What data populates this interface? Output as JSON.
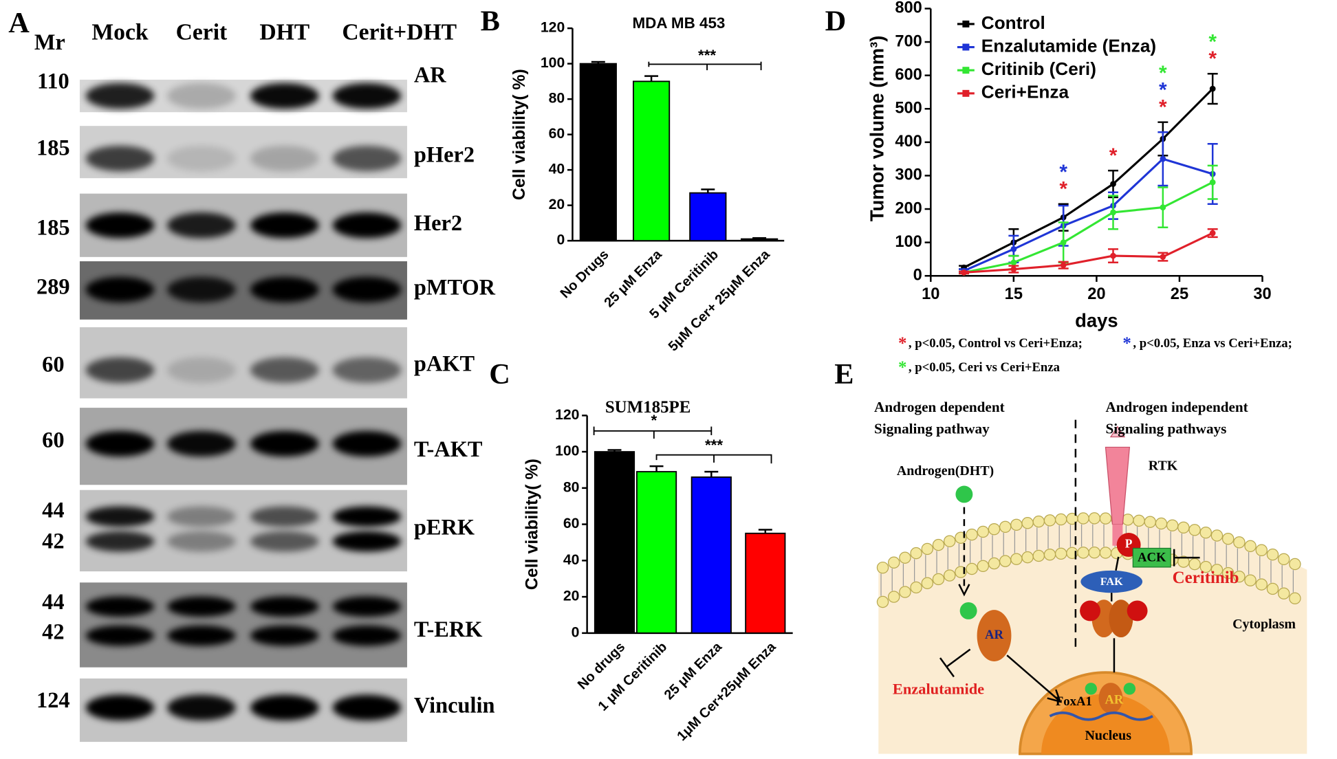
{
  "panel_labels": [
    "A",
    "B",
    "C",
    "D",
    "E"
  ],
  "blot": {
    "mr_header": "Mr",
    "columns": [
      "Mock",
      "Cerit",
      "DHT",
      "Cerit+DHT"
    ],
    "rows": [
      {
        "mr": [
          110
        ],
        "label": "AR"
      },
      {
        "mr": [
          185
        ],
        "label": "pHer2"
      },
      {
        "mr": [
          185
        ],
        "label": "Her2"
      },
      {
        "mr": [
          289
        ],
        "label": "pMTOR"
      },
      {
        "mr": [
          60
        ],
        "label": "pAKT"
      },
      {
        "mr": [
          60
        ],
        "label": "T-AKT"
      },
      {
        "mr": [
          44,
          42
        ],
        "label": "pERK"
      },
      {
        "mr": [
          44,
          42
        ],
        "label": "T-ERK"
      },
      {
        "mr": [
          124
        ],
        "label": "Vinculin"
      }
    ]
  },
  "chart_data": [
    {
      "type": "bar",
      "title": "MDA MB 453",
      "y_label": "Cell viability( %)",
      "categories": [
        "No Drugs",
        "25 μM Enza",
        "5 μM Ceritinib",
        "5μM Cer+ 25μM Enza"
      ],
      "values": [
        100,
        90,
        27,
        1
      ],
      "errors": [
        1,
        3,
        2,
        0.5
      ],
      "colors": [
        "#000000",
        "#00ff00",
        "#0000ff",
        "#000000"
      ],
      "ylim": [
        0,
        120
      ],
      "yticks": [
        0,
        20,
        40,
        60,
        80,
        100,
        120
      ],
      "annotations": [
        "***"
      ]
    },
    {
      "type": "bar",
      "title": "SUM185PE",
      "y_label": "Cell viability( %)",
      "categories": [
        "No drugs",
        "1 μM Ceritinib",
        "25 μM Enza",
        "1μM Cer+25μM Enza"
      ],
      "values": [
        100,
        89,
        86,
        55
      ],
      "errors": [
        1,
        3,
        3,
        2
      ],
      "colors": [
        "#000000",
        "#00ff00",
        "#0000ff",
        "#ff0000"
      ],
      "ylim": [
        0,
        120
      ],
      "yticks": [
        0,
        20,
        40,
        60,
        80,
        100,
        120
      ],
      "annotations": [
        "*",
        "***"
      ]
    },
    {
      "type": "line",
      "x_label": "days",
      "y_label": "Tumor volume (mm³)",
      "x": [
        12,
        15,
        18,
        21,
        24,
        27
      ],
      "series": [
        {
          "name": "Control",
          "color": "#000000",
          "values": [
            25,
            100,
            175,
            275,
            410,
            560
          ],
          "errors": [
            5,
            40,
            40,
            40,
            50,
            45
          ]
        },
        {
          "name": "Enzalutamide (Enza)",
          "color": "#1f35d6",
          "values": [
            15,
            80,
            150,
            210,
            350,
            305
          ],
          "errors": [
            5,
            40,
            60,
            40,
            80,
            90
          ]
        },
        {
          "name": "Critinib (Ceri)",
          "color": "#33e633",
          "values": [
            10,
            40,
            100,
            190,
            205,
            280
          ],
          "errors": [
            3,
            20,
            60,
            50,
            60,
            50
          ]
        },
        {
          "name": "Ceri+Enza",
          "color": "#e0202a",
          "values": [
            10,
            20,
            32,
            60,
            57,
            128
          ],
          "errors": [
            3,
            10,
            10,
            20,
            12,
            12
          ]
        }
      ],
      "xlim": [
        10,
        30
      ],
      "xticks": [
        10,
        15,
        20,
        25,
        30
      ],
      "ylim": [
        0,
        800
      ],
      "yticks": [
        0,
        100,
        200,
        300,
        400,
        500,
        600,
        700,
        800
      ],
      "annotations": [
        {
          "x": 18,
          "text": "*",
          "color": "#e0202a"
        },
        {
          "x": 18,
          "text": "*",
          "color": "#1f35d6"
        },
        {
          "x": 21,
          "text": "*",
          "color": "#e0202a"
        },
        {
          "x": 24,
          "text": "*",
          "color": "#e0202a"
        },
        {
          "x": 24,
          "text": "*",
          "color": "#1f35d6"
        },
        {
          "x": 24,
          "text": "*",
          "color": "#33e633"
        },
        {
          "x": 27,
          "text": "*",
          "color": "#e0202a"
        },
        {
          "x": 27,
          "text": "*",
          "color": "#33e633"
        }
      ],
      "notes": [
        {
          "marker": "*",
          "color": "#e0202a",
          "text": ",   p<0.05, Control vs Ceri+Enza;"
        },
        {
          "marker": "*",
          "color": "#1f35d6",
          "text": ",   p<0.05, Enza vs Ceri+Enza;"
        },
        {
          "marker": "*",
          "color": "#33e633",
          "text": ",   p<0.05, Ceri vs Ceri+Enza"
        }
      ]
    }
  ],
  "diagram": {
    "left_title": [
      "Androgen dependent",
      "Signaling pathway"
    ],
    "right_title": [
      "Androgen independent",
      "Signaling pathways"
    ],
    "ligand": "Androgen(DHT)",
    "receptor": "RTK",
    "phospho": "P",
    "kinase": "ACK",
    "inhibitor_right": "Ceritinib",
    "adaptor": "FAK",
    "compartment": "Cytoplasm",
    "receptor_cyto": "AR",
    "inhibitor_left": "Enzalutamide",
    "cofactor": "FoxA1",
    "receptor_nuc": "AR",
    "nucleus": "Nucleus"
  }
}
